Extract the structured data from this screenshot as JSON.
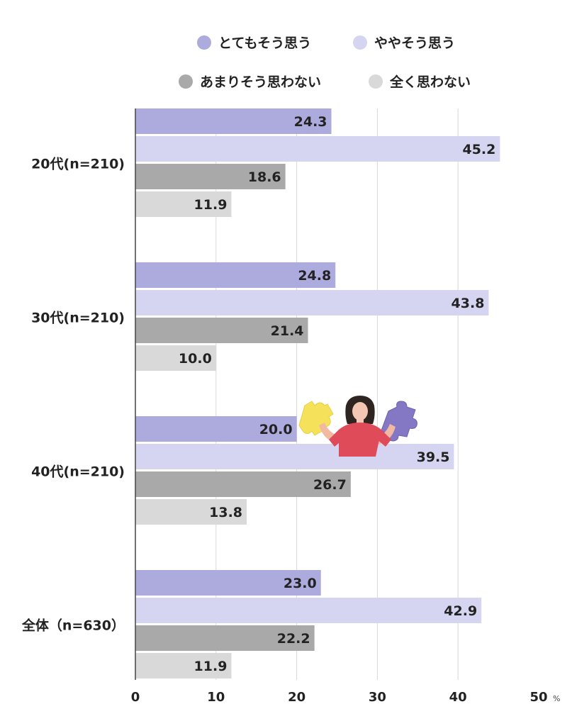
{
  "chart_data": {
    "type": "bar",
    "orientation": "horizontal",
    "categories": [
      "20代(n=210)",
      "30代(n=210)",
      "40代(n=210)",
      "全体（n=630）"
    ],
    "series": [
      {
        "name": "とてもそう思う",
        "color": "#adaade",
        "values": [
          24.3,
          24.8,
          20.0,
          23.0
        ]
      },
      {
        "name": "ややそう思う",
        "color": "#d6d5f1",
        "values": [
          45.2,
          43.8,
          39.5,
          42.9
        ]
      },
      {
        "name": "あまりそう思わない",
        "color": "#a9a9a9",
        "values": [
          18.6,
          21.4,
          26.7,
          22.2
        ]
      },
      {
        "name": "全く思わない",
        "color": "#d9d9d9",
        "values": [
          11.9,
          10.0,
          13.8,
          11.9
        ]
      }
    ],
    "xlim": [
      0,
      50
    ],
    "xticks": [
      "0",
      "10",
      "20",
      "30",
      "40",
      "50"
    ],
    "unit": "%",
    "grid": true,
    "legend_position": "top"
  }
}
